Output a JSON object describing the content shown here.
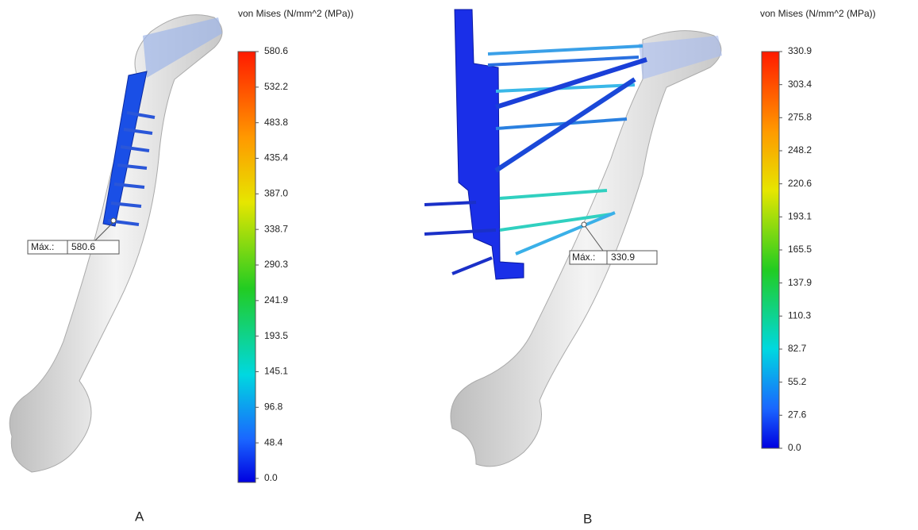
{
  "panels": [
    {
      "title": "von Mises (N/mm^2 (MPa))",
      "ticks": [
        "580.6",
        "532.2",
        "483.8",
        "435.4",
        "387.0",
        "338.7",
        "290.3",
        "241.9",
        "193.5",
        "145.1",
        "96.8",
        "48.4",
        "0.0"
      ],
      "max_label": "Máx.:",
      "max_value": "580.6",
      "label": "A"
    },
    {
      "title": "von Mises (N/mm^2 (MPa))",
      "ticks": [
        "330.9",
        "303.4",
        "275.8",
        "248.2",
        "220.6",
        "193.1",
        "165.5",
        "137.9",
        "110.3",
        "82.7",
        "55.2",
        "27.6",
        "0.0"
      ],
      "max_label": "Máx.:",
      "max_value": "330.9",
      "label": "B"
    }
  ]
}
